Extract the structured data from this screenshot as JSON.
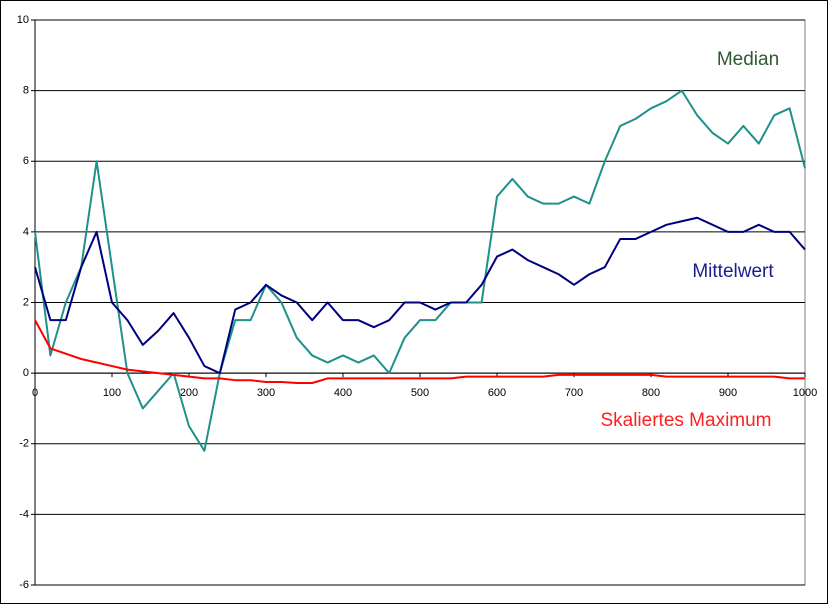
{
  "chart_data": {
    "type": "line",
    "x": [
      0,
      20,
      40,
      60,
      80,
      100,
      120,
      140,
      160,
      180,
      200,
      220,
      240,
      260,
      280,
      300,
      320,
      340,
      360,
      380,
      400,
      420,
      440,
      460,
      480,
      500,
      520,
      540,
      560,
      580,
      600,
      620,
      640,
      660,
      680,
      700,
      720,
      740,
      760,
      780,
      800,
      820,
      840,
      860,
      880,
      900,
      920,
      940,
      960,
      980,
      1000
    ],
    "series": [
      {
        "name": "Median",
        "color": "#1f918a",
        "values": [
          4,
          0.5,
          2,
          3,
          6,
          3,
          0,
          -1,
          -0.5,
          0,
          -1.5,
          -2.2,
          0,
          1.5,
          1.5,
          2.5,
          2,
          1,
          0.5,
          0.3,
          0.5,
          0.3,
          0.5,
          0,
          1,
          1.5,
          1.5,
          2,
          2,
          2,
          5,
          5.5,
          5,
          4.8,
          4.8,
          5,
          4.8,
          6,
          7,
          7.2,
          7.5,
          7.7,
          8,
          7.3,
          6.8,
          6.5,
          7,
          6.5,
          7.3,
          7.5,
          5.8
        ]
      },
      {
        "name": "Mittelwert",
        "color": "#00007f",
        "values": [
          3,
          1.5,
          1.5,
          3,
          4,
          2,
          1.5,
          0.8,
          1.2,
          1.7,
          1,
          0.2,
          0,
          1.8,
          2,
          2.5,
          2.2,
          2,
          1.5,
          2,
          1.5,
          1.5,
          1.3,
          1.5,
          2,
          2,
          1.8,
          2,
          2,
          2.5,
          3.3,
          3.5,
          3.2,
          3,
          2.8,
          2.5,
          2.8,
          3,
          3.8,
          3.8,
          4,
          4.2,
          4.3,
          4.4,
          4.2,
          4,
          4,
          4.2,
          4,
          4,
          3.5
        ]
      },
      {
        "name": "Skaliertes Maximum",
        "color": "#ff0000",
        "values": [
          1.5,
          0.7,
          0.55,
          0.4,
          0.3,
          0.2,
          0.1,
          0.05,
          0,
          -0.05,
          -0.1,
          -0.15,
          -0.15,
          -0.2,
          -0.2,
          -0.25,
          -0.25,
          -0.28,
          -0.28,
          -0.15,
          -0.15,
          -0.15,
          -0.15,
          -0.15,
          -0.15,
          -0.15,
          -0.15,
          -0.15,
          -0.1,
          -0.1,
          -0.1,
          -0.1,
          -0.1,
          -0.1,
          -0.05,
          -0.05,
          -0.05,
          -0.05,
          -0.05,
          -0.05,
          -0.05,
          -0.1,
          -0.1,
          -0.1,
          -0.1,
          -0.1,
          -0.1,
          -0.1,
          -0.1,
          -0.15,
          -0.15
        ]
      }
    ],
    "xlim": [
      0,
      1000
    ],
    "ylim": [
      -6,
      10
    ],
    "xticks": [
      0,
      100,
      200,
      300,
      400,
      500,
      600,
      700,
      800,
      900,
      1000
    ],
    "yticks": [
      -6,
      -4,
      -2,
      0,
      2,
      4,
      6,
      8,
      10
    ],
    "grid": true
  }
}
